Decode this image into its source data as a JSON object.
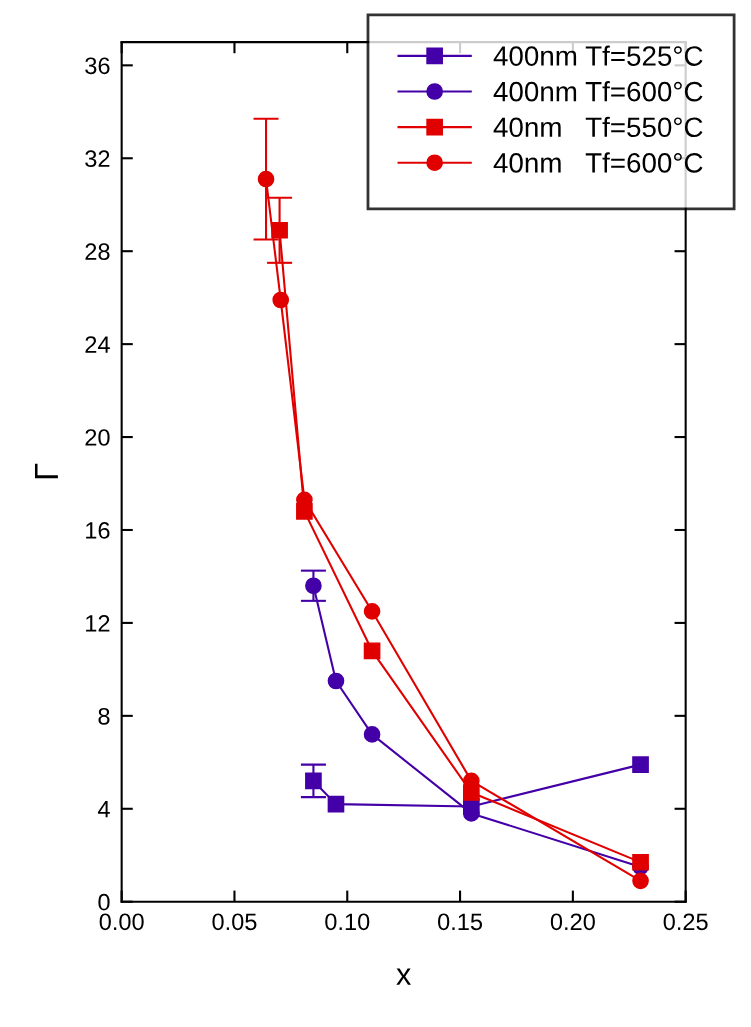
{
  "chart_data": {
    "type": "line",
    "xlabel": "x",
    "ylabel": "Γ",
    "xlim": [
      0,
      0.25
    ],
    "ylim": [
      0,
      37
    ],
    "xticks": [
      {
        "value": 0,
        "label": "0.00"
      },
      {
        "value": 0.05,
        "label": "0.05"
      },
      {
        "value": 0.1,
        "label": "0.10"
      },
      {
        "value": 0.15,
        "label": "0.15"
      },
      {
        "value": 0.2,
        "label": "0.20"
      },
      {
        "value": 0.25,
        "label": "0.25"
      }
    ],
    "yticks": [
      0,
      4,
      8,
      12,
      16,
      20,
      24,
      28,
      32,
      36
    ],
    "legend": "top right",
    "grid": false,
    "series": [
      {
        "name": "400nm Tf=525°C",
        "color": "#4400a8",
        "marker": "square",
        "x": [
          0.085,
          0.095,
          0.155,
          0.23
        ],
        "values": [
          5.2,
          4.2,
          4.1,
          5.9
        ],
        "errors": [
          0.7,
          null,
          null,
          null
        ]
      },
      {
        "name": "400nm Tf=600°C",
        "color": "#4400a8",
        "marker": "circle",
        "x": [
          0.085,
          0.095,
          0.111,
          0.155,
          0.23
        ],
        "values": [
          13.6,
          9.5,
          7.2,
          3.8,
          1.5
        ],
        "errors": [
          0.65,
          null,
          null,
          null,
          null
        ]
      },
      {
        "name": "40nm   Tf=550°C",
        "color": "#e00000",
        "marker": "square",
        "x": [
          0.07,
          0.081,
          0.111,
          0.155,
          0.23
        ],
        "values": [
          28.9,
          16.8,
          10.8,
          4.7,
          1.7
        ],
        "errors": [
          1.4,
          null,
          null,
          null,
          null
        ]
      },
      {
        "name": "40nm   Tf=600°C",
        "color": "#e00000",
        "marker": "circle",
        "x": [
          0.064,
          0.0705,
          0.081,
          0.111,
          0.155,
          0.23
        ],
        "values": [
          31.1,
          25.9,
          17.3,
          12.5,
          5.2,
          0.9
        ],
        "errors": [
          2.6,
          null,
          null,
          null,
          null,
          null
        ]
      }
    ]
  }
}
